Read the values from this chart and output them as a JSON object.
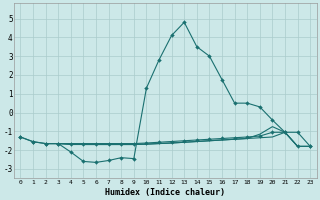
{
  "xlabel": "Humidex (Indice chaleur)",
  "xlim": [
    -0.5,
    23.5
  ],
  "ylim": [
    -3.5,
    5.8
  ],
  "yticks": [
    -3,
    -2,
    -1,
    0,
    1,
    2,
    3,
    4,
    5
  ],
  "xticks": [
    0,
    1,
    2,
    3,
    4,
    5,
    6,
    7,
    8,
    9,
    10,
    11,
    12,
    13,
    14,
    15,
    16,
    17,
    18,
    19,
    20,
    21,
    22,
    23
  ],
  "bg_color": "#cce8e8",
  "grid_color": "#aacccc",
  "line_color": "#1a7070",
  "series_main_x": [
    0,
    1,
    2,
    3,
    4,
    5,
    6,
    7,
    8,
    9,
    10,
    11,
    12,
    13,
    14,
    15,
    16,
    17,
    18,
    19,
    20,
    21,
    22,
    23
  ],
  "series_main_y": [
    -1.3,
    -1.55,
    -1.65,
    -1.65,
    -2.1,
    -2.6,
    -2.65,
    -2.55,
    -2.4,
    -2.45,
    1.3,
    2.8,
    4.1,
    4.8,
    3.5,
    3.0,
    1.75,
    0.5,
    0.5,
    0.3,
    -0.4,
    -1.05,
    -1.05,
    -1.8
  ],
  "series_flat1_x": [
    0,
    1,
    2,
    3,
    4,
    5,
    6,
    7,
    8,
    9,
    10,
    11,
    12,
    13,
    14,
    15,
    16,
    17,
    18,
    19,
    20,
    21,
    22,
    23
  ],
  "series_flat1_y": [
    -1.3,
    -1.55,
    -1.65,
    -1.65,
    -1.65,
    -1.65,
    -1.65,
    -1.65,
    -1.65,
    -1.65,
    -1.62,
    -1.58,
    -1.54,
    -1.5,
    -1.46,
    -1.42,
    -1.38,
    -1.34,
    -1.3,
    -1.25,
    -1.05,
    -1.05,
    -1.8,
    -1.8
  ],
  "series_flat2_x": [
    2,
    3,
    4,
    5,
    6,
    7,
    8,
    9,
    10,
    11,
    12,
    13,
    14,
    15,
    16,
    17,
    18,
    19,
    20,
    21,
    22,
    23
  ],
  "series_flat2_y": [
    -1.65,
    -1.65,
    -1.68,
    -1.7,
    -1.7,
    -1.7,
    -1.7,
    -1.7,
    -1.68,
    -1.65,
    -1.62,
    -1.58,
    -1.54,
    -1.5,
    -1.46,
    -1.42,
    -1.38,
    -1.34,
    -1.3,
    -1.05,
    -1.8,
    -1.8
  ],
  "series_flat3_x": [
    2,
    3,
    4,
    5,
    6,
    7,
    8,
    9,
    10,
    11,
    12,
    13,
    14,
    15,
    16,
    17,
    18,
    19,
    20,
    21,
    22,
    23
  ],
  "series_flat3_y": [
    -1.65,
    -1.65,
    -1.7,
    -1.7,
    -1.7,
    -1.7,
    -1.7,
    -1.7,
    -1.68,
    -1.65,
    -1.62,
    -1.58,
    -1.54,
    -1.5,
    -1.46,
    -1.42,
    -1.38,
    -1.15,
    -0.75,
    -1.05,
    -1.8,
    -1.8
  ]
}
